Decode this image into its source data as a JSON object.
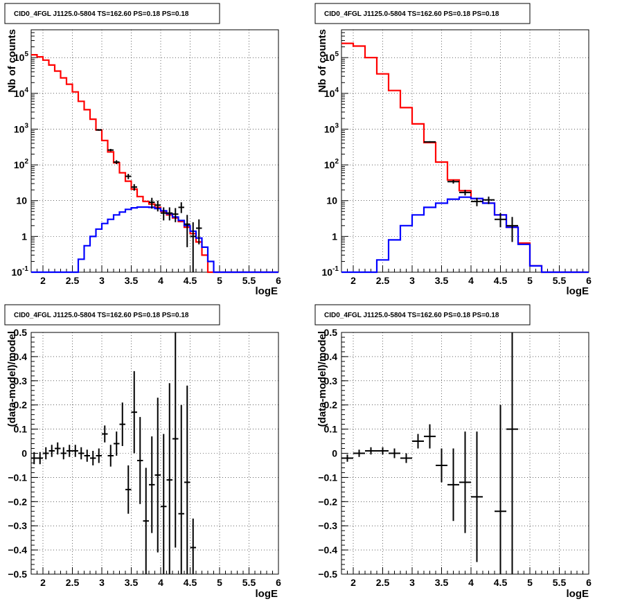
{
  "chart_data": [
    {
      "type": "line",
      "title": "CID0_4FGL J1125.0-5804 TS=162.60 PS=0.18 PS=0.18",
      "xlabel": "logE",
      "ylabel": "Nb of counts",
      "xlim": [
        1.8,
        6.0
      ],
      "ylim": [
        0.1,
        600000
      ],
      "yscale": "log",
      "grid": true,
      "x_ticks": [
        "2",
        "2.5",
        "3",
        "3.5",
        "4",
        "4.5",
        "5",
        "5.5",
        "6"
      ],
      "y_ticks": [
        {
          "base": "10",
          "exp": "-1",
          "value": 0.1
        },
        {
          "base": "1",
          "exp": "",
          "value": 1
        },
        {
          "base": "10",
          "exp": "",
          "value": 10
        },
        {
          "base": "10",
          "exp": "2",
          "value": 100
        },
        {
          "base": "10",
          "exp": "3",
          "value": 1000
        },
        {
          "base": "10",
          "exp": "4",
          "value": 10000
        },
        {
          "base": "10",
          "exp": "5",
          "value": 100000
        }
      ],
      "bin_edges": [
        1.8,
        1.9,
        2.0,
        2.1,
        2.2,
        2.3,
        2.4,
        2.5,
        2.6,
        2.7,
        2.8,
        2.9,
        3.0,
        3.1,
        3.2,
        3.3,
        3.4,
        3.5,
        3.6,
        3.7,
        3.8,
        3.9,
        4.0,
        4.1,
        4.2,
        4.3,
        4.4,
        4.5,
        4.6,
        4.7,
        4.8,
        4.9,
        5.0,
        5.1,
        5.2,
        5.3,
        5.4,
        5.5,
        5.6,
        5.7,
        5.8,
        5.9,
        6.0
      ],
      "series": [
        {
          "color": "#ff0000",
          "step": true,
          "values": [
            120000,
            105000,
            85000,
            62000,
            42000,
            27000,
            18000,
            11000,
            6000,
            3500,
            1900,
            950,
            480,
            230,
            115,
            60,
            35,
            21,
            13,
            9.5,
            8,
            6.5,
            5,
            4,
            3.3,
            2.6,
            1.8,
            1.2,
            0.7,
            0.3,
            0.1,
            0.1,
            0.1,
            0.1,
            0.1,
            0.1,
            0.1,
            0.1,
            0.1,
            0.1,
            0.1,
            0.1
          ]
        },
        {
          "color": "#0000ff",
          "step": true,
          "values": [
            0.1,
            0.1,
            0.1,
            0.1,
            0.1,
            0.1,
            0.1,
            0.1,
            0.23,
            0.55,
            1.0,
            1.6,
            2.3,
            3.0,
            4.0,
            4.8,
            5.7,
            6.3,
            6.6,
            6.6,
            6.5,
            6.0,
            5.2,
            4.3,
            3.5,
            2.8,
            2.0,
            1.4,
            0.9,
            0.5,
            0.2,
            0.1,
            0.1,
            0.1,
            0.1,
            0.1,
            0.1,
            0.1,
            0.1,
            0.1,
            0.1,
            0.1
          ]
        },
        {
          "color": "#000000",
          "markers": "errorbars",
          "points": [
            {
              "x": 2.95,
              "y": 950,
              "lo": 900,
              "hi": 1000
            },
            {
              "x": 3.15,
              "y": 260,
              "lo": 240,
              "hi": 280
            },
            {
              "x": 3.25,
              "y": 120,
              "lo": 105,
              "hi": 135
            },
            {
              "x": 3.45,
              "y": 48,
              "lo": 40,
              "hi": 56
            },
            {
              "x": 3.55,
              "y": 24,
              "lo": 19,
              "hi": 29
            },
            {
              "x": 3.85,
              "y": 9,
              "lo": 6,
              "hi": 12
            },
            {
              "x": 3.95,
              "y": 7.5,
              "lo": 5,
              "hi": 10
            },
            {
              "x": 4.05,
              "y": 4.5,
              "lo": 2.8,
              "hi": 6.5
            },
            {
              "x": 4.15,
              "y": 4.5,
              "lo": 2.8,
              "hi": 6.5
            },
            {
              "x": 4.25,
              "y": 4.2,
              "lo": 2.5,
              "hi": 6.2
            },
            {
              "x": 4.35,
              "y": 6.5,
              "lo": 4.5,
              "hi": 9
            },
            {
              "x": 4.45,
              "y": 2.2,
              "lo": 0.5,
              "hi": 4
            },
            {
              "x": 4.55,
              "y": 1.0,
              "lo": 0.1,
              "hi": 2.5
            },
            {
              "x": 4.65,
              "y": 1.7,
              "lo": 0.6,
              "hi": 3
            }
          ]
        }
      ]
    },
    {
      "type": "line",
      "title": "CID0_4FGL J1125.0-5804 TS=162.60 PS=0.18 PS=0.18",
      "xlabel": "logE",
      "ylabel": "Nb of counts",
      "xlim": [
        1.8,
        6.0
      ],
      "ylim": [
        0.1,
        600000
      ],
      "yscale": "log",
      "grid": true,
      "x_ticks": [
        "2",
        "2.5",
        "3",
        "3.5",
        "4",
        "4.5",
        "5",
        "5.5",
        "6"
      ],
      "y_ticks": [
        {
          "base": "10",
          "exp": "-1",
          "value": 0.1
        },
        {
          "base": "1",
          "exp": "",
          "value": 1
        },
        {
          "base": "10",
          "exp": "",
          "value": 10
        },
        {
          "base": "10",
          "exp": "2",
          "value": 100
        },
        {
          "base": "10",
          "exp": "3",
          "value": 1000
        },
        {
          "base": "10",
          "exp": "4",
          "value": 10000
        },
        {
          "base": "10",
          "exp": "5",
          "value": 100000
        }
      ],
      "bin_edges": [
        1.8,
        2.0,
        2.2,
        2.4,
        2.6,
        2.8,
        3.0,
        3.2,
        3.4,
        3.6,
        3.8,
        4.0,
        4.2,
        4.4,
        4.6,
        4.8,
        5.0,
        5.2,
        5.4,
        5.6,
        5.8,
        6.0
      ],
      "series": [
        {
          "color": "#ff0000",
          "step": true,
          "values": [
            250000,
            210000,
            100000,
            35000,
            12000,
            4000,
            1400,
            420,
            120,
            38,
            19,
            11.5,
            8.5,
            4.0,
            1.8,
            0.65,
            0.15,
            0.1,
            0.1,
            0.1,
            0.1
          ]
        },
        {
          "color": "#0000ff",
          "step": true,
          "values": [
            0.1,
            0.1,
            0.1,
            0.22,
            0.8,
            2.0,
            4.0,
            6.5,
            8.5,
            11,
            12.5,
            11.5,
            8.5,
            4.0,
            1.8,
            0.6,
            0.15,
            0.1,
            0.1,
            0.1,
            0.1
          ]
        },
        {
          "color": "#000000",
          "markers": "errorbars",
          "points": [
            {
              "x": 3.3,
              "y": 440,
              "lo": 420,
              "hi": 460
            },
            {
              "x": 3.7,
              "y": 34,
              "lo": 30,
              "hi": 38
            },
            {
              "x": 3.9,
              "y": 17,
              "lo": 14,
              "hi": 20
            },
            {
              "x": 4.1,
              "y": 9.5,
              "lo": 7,
              "hi": 12
            },
            {
              "x": 4.3,
              "y": 10.5,
              "lo": 8,
              "hi": 13
            },
            {
              "x": 4.5,
              "y": 3.0,
              "lo": 1.8,
              "hi": 4.5
            },
            {
              "x": 4.7,
              "y": 2.0,
              "lo": 0.7,
              "hi": 3.5
            }
          ]
        }
      ]
    },
    {
      "type": "scatter",
      "title": "CID0_4FGL J1125.0-5804 TS=162.60 PS=0.18 PS=0.18",
      "xlabel": "logE",
      "ylabel": "(data-model)/model",
      "xlim": [
        1.8,
        6.0
      ],
      "ylim": [
        -0.5,
        0.5
      ],
      "grid": true,
      "x_ticks": [
        "2",
        "2.5",
        "3",
        "3.5",
        "4",
        "4.5",
        "5",
        "5.5",
        "6"
      ],
      "y_ticks": [
        "−0.5",
        "−0.4",
        "−0.3",
        "−0.2",
        "−0.1",
        "0",
        "0.1",
        "0.2",
        "0.3",
        "0.4",
        "0.5"
      ],
      "xerr": 0.05,
      "points": [
        {
          "x": 1.85,
          "y": -0.02,
          "err": 0.025
        },
        {
          "x": 1.95,
          "y": -0.02,
          "err": 0.025
        },
        {
          "x": 2.05,
          "y": 0.0,
          "err": 0.025
        },
        {
          "x": 2.15,
          "y": 0.01,
          "err": 0.025
        },
        {
          "x": 2.25,
          "y": 0.02,
          "err": 0.025
        },
        {
          "x": 2.35,
          "y": 0.0,
          "err": 0.025
        },
        {
          "x": 2.45,
          "y": 0.01,
          "err": 0.025
        },
        {
          "x": 2.55,
          "y": 0.01,
          "err": 0.025
        },
        {
          "x": 2.65,
          "y": 0.0,
          "err": 0.025
        },
        {
          "x": 2.75,
          "y": -0.01,
          "err": 0.025
        },
        {
          "x": 2.85,
          "y": -0.02,
          "err": 0.03
        },
        {
          "x": 2.95,
          "y": -0.01,
          "err": 0.03
        },
        {
          "x": 3.05,
          "y": 0.08,
          "err": 0.035
        },
        {
          "x": 3.15,
          "y": -0.01,
          "err": 0.045
        },
        {
          "x": 3.25,
          "y": 0.04,
          "err": 0.05
        },
        {
          "x": 3.35,
          "y": 0.12,
          "err": 0.09
        },
        {
          "x": 3.45,
          "y": -0.15,
          "err": 0.1
        },
        {
          "x": 3.55,
          "y": 0.17,
          "err": 0.17
        },
        {
          "x": 3.65,
          "y": -0.03,
          "err": 0.18
        },
        {
          "x": 3.75,
          "y": -0.28,
          "err": 0.22
        },
        {
          "x": 3.85,
          "y": -0.13,
          "err": 0.2
        },
        {
          "x": 3.95,
          "y": -0.09,
          "err": 0.32
        },
        {
          "x": 4.05,
          "y": -0.22,
          "err": 0.3
        },
        {
          "x": 4.15,
          "y": -0.11,
          "err": 0.4
        },
        {
          "x": 4.25,
          "y": 0.06,
          "err": 0.45
        },
        {
          "x": 4.35,
          "y": -0.25,
          "err": 0.45
        },
        {
          "x": 4.45,
          "y": -0.12,
          "err": 0.4
        },
        {
          "x": 4.55,
          "y": -0.39,
          "err": 0.12
        }
      ]
    },
    {
      "type": "scatter",
      "title": "CID0_4FGL J1125.0-5804 TS=162.60 PS=0.18 PS=0.18",
      "xlabel": "logE",
      "ylabel": "(data-model)/model",
      "xlim": [
        1.8,
        6.0
      ],
      "ylim": [
        -0.5,
        0.5
      ],
      "grid": true,
      "x_ticks": [
        "2",
        "2.5",
        "3",
        "3.5",
        "4",
        "4.5",
        "5",
        "5.5",
        "6"
      ],
      "y_ticks": [
        "−0.5",
        "−0.4",
        "−0.3",
        "−0.2",
        "−0.1",
        "0",
        "0.1",
        "0.2",
        "0.3",
        "0.4",
        "0.5"
      ],
      "xerr": 0.1,
      "points": [
        {
          "x": 1.9,
          "y": -0.02,
          "err": 0.015
        },
        {
          "x": 2.1,
          "y": 0.0,
          "err": 0.015
        },
        {
          "x": 2.3,
          "y": 0.01,
          "err": 0.015
        },
        {
          "x": 2.5,
          "y": 0.01,
          "err": 0.015
        },
        {
          "x": 2.7,
          "y": 0.0,
          "err": 0.02
        },
        {
          "x": 2.9,
          "y": -0.02,
          "err": 0.02
        },
        {
          "x": 3.1,
          "y": 0.05,
          "err": 0.03
        },
        {
          "x": 3.3,
          "y": 0.07,
          "err": 0.05
        },
        {
          "x": 3.5,
          "y": -0.05,
          "err": 0.07
        },
        {
          "x": 3.7,
          "y": -0.13,
          "err": 0.15
        },
        {
          "x": 3.9,
          "y": -0.12,
          "err": 0.21
        },
        {
          "x": 4.1,
          "y": -0.18,
          "err": 0.27
        },
        {
          "x": 4.5,
          "y": -0.24,
          "err": 0.44
        },
        {
          "x": 4.7,
          "y": 0.1,
          "err": 0.6
        }
      ]
    }
  ]
}
